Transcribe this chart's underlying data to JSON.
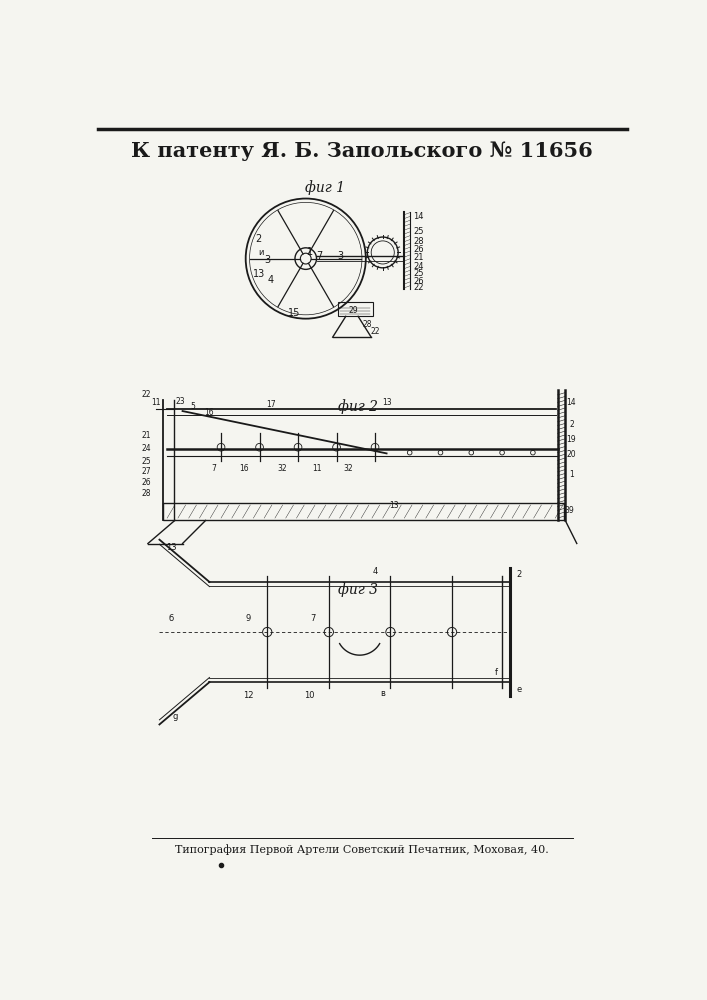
{
  "title": "К патенту Я. Б. Запольского № 11656",
  "footer": "Типография Первой Артели Советский Печатник, Моховая, 40.",
  "fig1_label": "фиг 1",
  "fig2_label": "фиг 2",
  "fig3_label": "фиг 3",
  "bg_color": "#f5f5f0",
  "line_color": "#1a1a1a",
  "title_fontsize": 15,
  "footer_fontsize": 8,
  "fig_label_fontsize": 10,
  "border_color": "#1a1a1a"
}
